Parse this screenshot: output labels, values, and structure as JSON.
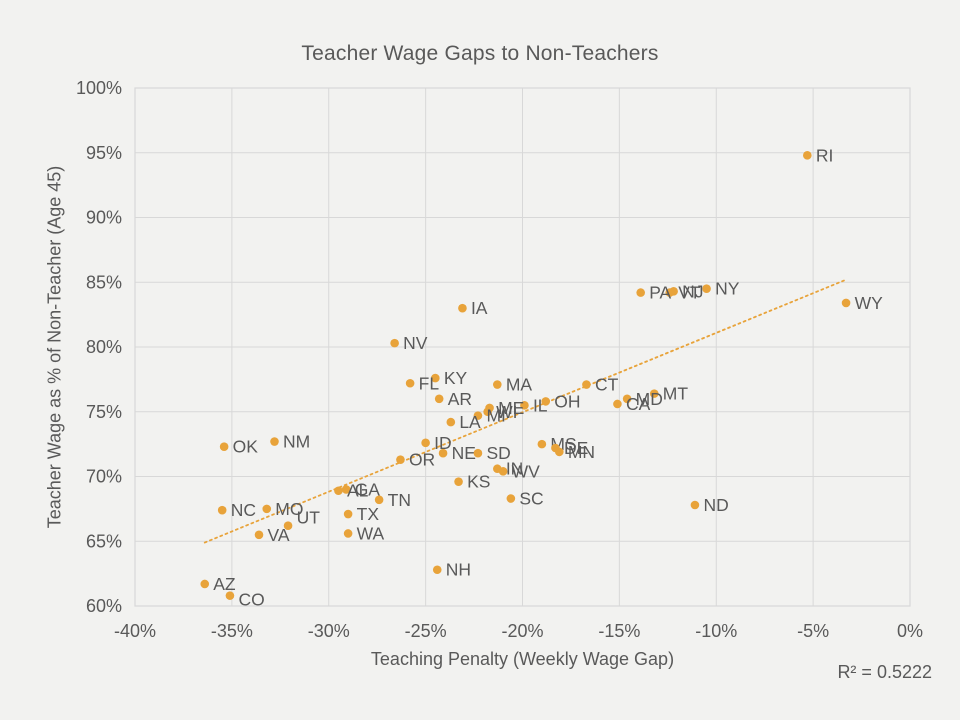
{
  "slide": {
    "background": "#F2F2F0"
  },
  "chart_data": {
    "type": "scatter",
    "title": "Teacher Wage Gaps to Non-Teachers",
    "xlabel": "Teaching Penalty (Weekly Wage Gap)",
    "ylabel": "Teacher Wage as % of Non-Teacher (Age 45)",
    "r2_label": "R² = 0.5222",
    "r_squared": 0.5222,
    "xlim": [
      -40,
      0
    ],
    "ylim": [
      60,
      100
    ],
    "grid": true,
    "legend": "none",
    "colors": {
      "points": "#E8A33A",
      "trendline": "#E8A33A",
      "text": "#595959",
      "grid": "#D8D8D8",
      "background": "#F2F2F0"
    },
    "x_ticks": [
      {
        "v": -40,
        "label": "-40%"
      },
      {
        "v": -35,
        "label": "-35%"
      },
      {
        "v": -30,
        "label": "-30%"
      },
      {
        "v": -25,
        "label": "-25%"
      },
      {
        "v": -20,
        "label": "-20%"
      },
      {
        "v": -15,
        "label": "-15%"
      },
      {
        "v": -10,
        "label": "-10%"
      },
      {
        "v": -5,
        "label": "-5%"
      },
      {
        "v": 0,
        "label": "0%"
      }
    ],
    "y_ticks": [
      {
        "v": 100,
        "label": "100%"
      },
      {
        "v": 95,
        "label": "95%"
      },
      {
        "v": 90,
        "label": "90%"
      },
      {
        "v": 85,
        "label": "85%"
      },
      {
        "v": 80,
        "label": "80%"
      },
      {
        "v": 75,
        "label": "75%"
      },
      {
        "v": 70,
        "label": "70%"
      },
      {
        "v": 65,
        "label": "65%"
      },
      {
        "v": 60,
        "label": "60%"
      }
    ],
    "trendline": {
      "x1": -36.4,
      "y1": 64.9,
      "x2": -3.3,
      "y2": 85.2,
      "style": "dotted"
    },
    "points": [
      {
        "state": "RI",
        "x": -5.3,
        "y": 94.8
      },
      {
        "state": "NY",
        "x": -10.5,
        "y": 84.5
      },
      {
        "state": "NJ",
        "x": -12.2,
        "y": 84.3
      },
      {
        "state": "VT",
        "x": -12.4,
        "y": 84.2
      },
      {
        "state": "PA",
        "x": -13.9,
        "y": 84.2
      },
      {
        "state": "WY",
        "x": -3.3,
        "y": 83.4
      },
      {
        "state": "IA",
        "x": -23.1,
        "y": 83.0
      },
      {
        "state": "NV",
        "x": -26.6,
        "y": 80.3
      },
      {
        "state": "KY",
        "x": -24.5,
        "y": 77.6
      },
      {
        "state": "FL",
        "x": -25.8,
        "y": 77.2
      },
      {
        "state": "MA",
        "x": -21.3,
        "y": 77.1
      },
      {
        "state": "CT",
        "x": -16.7,
        "y": 77.1
      },
      {
        "state": "MT",
        "x": -13.2,
        "y": 76.4
      },
      {
        "state": "AR",
        "x": -24.3,
        "y": 76.0
      },
      {
        "state": "MD",
        "x": -14.6,
        "y": 76.0
      },
      {
        "state": "OH",
        "x": -18.8,
        "y": 75.8
      },
      {
        "state": "CA",
        "x": -15.1,
        "y": 75.6
      },
      {
        "state": "IL",
        "x": -19.9,
        "y": 75.5
      },
      {
        "state": "ME",
        "x": -21.7,
        "y": 75.3
      },
      {
        "state": "WI",
        "x": -21.8,
        "y": 75.0
      },
      {
        "state": "MI",
        "x": -22.3,
        "y": 74.7
      },
      {
        "state": "LA",
        "x": -23.7,
        "y": 74.2
      },
      {
        "state": "NM",
        "x": -32.8,
        "y": 72.7
      },
      {
        "state": "ID",
        "x": -25.0,
        "y": 72.6
      },
      {
        "state": "MS",
        "x": -19.0,
        "y": 72.5
      },
      {
        "state": "OK",
        "x": -35.4,
        "y": 72.3
      },
      {
        "state": "DE",
        "x": -18.3,
        "y": 72.2
      },
      {
        "state": "MN",
        "x": -18.1,
        "y": 71.9
      },
      {
        "state": "NE",
        "x": -24.1,
        "y": 71.8
      },
      {
        "state": "SD",
        "x": -22.3,
        "y": 71.8
      },
      {
        "state": "OR",
        "x": -26.3,
        "y": 71.3
      },
      {
        "state": "IN",
        "x": -21.3,
        "y": 70.6
      },
      {
        "state": "WV",
        "x": -21.0,
        "y": 70.4
      },
      {
        "state": "KS",
        "x": -23.3,
        "y": 69.6
      },
      {
        "state": "GA",
        "x": -29.1,
        "y": 69.0
      },
      {
        "state": "AL",
        "x": -29.5,
        "y": 68.9
      },
      {
        "state": "SC",
        "x": -20.6,
        "y": 68.3
      },
      {
        "state": "TN",
        "x": -27.4,
        "y": 68.2
      },
      {
        "state": "ND",
        "x": -11.1,
        "y": 67.8
      },
      {
        "state": "MO",
        "x": -33.2,
        "y": 67.5
      },
      {
        "state": "NC",
        "x": -35.5,
        "y": 67.4
      },
      {
        "state": "TX",
        "x": -29.0,
        "y": 67.1
      },
      {
        "state": "UT",
        "x": -32.1,
        "y": 66.2,
        "ldy": -8
      },
      {
        "state": "WA",
        "x": -29.0,
        "y": 65.6
      },
      {
        "state": "VA",
        "x": -33.6,
        "y": 65.5
      },
      {
        "state": "NH",
        "x": -24.4,
        "y": 62.8
      },
      {
        "state": "AZ",
        "x": -36.4,
        "y": 61.7
      },
      {
        "state": "CO",
        "x": -35.1,
        "y": 60.8,
        "ldy": 4
      }
    ]
  }
}
